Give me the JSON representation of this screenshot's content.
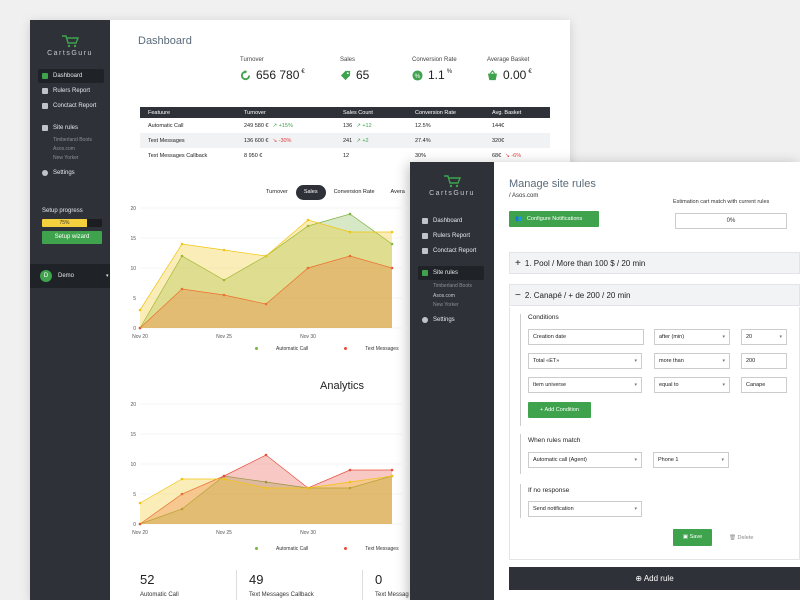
{
  "sidebar": {
    "logo": "CartsGuru",
    "items": [
      {
        "label": "Dashboard"
      },
      {
        "label": "Rulers Report"
      },
      {
        "label": "Conctact Report"
      },
      {
        "label": "Site rules"
      },
      {
        "label": "Settings"
      }
    ],
    "sites": [
      "Timberland Boots",
      "Asos.com",
      "New Yorker"
    ],
    "progress_label": "Setup progress",
    "progress_value": "75%",
    "wizard_label": "Setup wizard",
    "user_initial": "D",
    "user_name": "Demo"
  },
  "dashboard": {
    "title": "Dashboard",
    "stats": [
      {
        "label": "Turnover",
        "value": "656 780",
        "unit": "€",
        "icon": "refresh-icon"
      },
      {
        "label": "Sales",
        "value": "65",
        "unit": "",
        "icon": "tag-icon"
      },
      {
        "label": "Conversion Rate",
        "value": "1.1",
        "unit": "%",
        "icon": "badge-icon"
      },
      {
        "label": "Average Basket",
        "value": "0.00",
        "unit": "€",
        "icon": "basket-icon"
      }
    ],
    "table": {
      "headers": [
        "Featuure",
        "Turnover",
        "Sales Count",
        "Conversion Rate",
        "Avg. Basket"
      ],
      "rows": [
        {
          "feature": "Automatic Call",
          "turnover": "249 580 €",
          "t_delta": "+15%",
          "t_dir": "up",
          "sales": "136",
          "s_delta": "+12",
          "s_dir": "up",
          "conv": "12.5%",
          "avg": "144€",
          "a_delta": "",
          "a_dir": ""
        },
        {
          "feature": "Text Messages",
          "turnover": "136 600 €",
          "t_delta": "-30%",
          "t_dir": "down",
          "sales": "241",
          "s_delta": "+2",
          "s_dir": "up",
          "conv": "27.4%",
          "avg": "320€",
          "a_delta": "",
          "a_dir": ""
        },
        {
          "feature": "Text Messages Callback",
          "turnover": "8 950 €",
          "t_delta": "",
          "t_dir": "",
          "sales": "12",
          "s_delta": "",
          "s_dir": "",
          "conv": "30%",
          "avg": "68€",
          "a_delta": "-6%",
          "a_dir": "down"
        }
      ]
    },
    "chart_tabs": [
      "Turnover",
      "Sales",
      "Conversion Rate",
      "Avera"
    ],
    "active_tab": "Sales",
    "analytics_title": "Analytics",
    "bottom_stats": [
      {
        "value": "52",
        "label": "Automatic Call"
      },
      {
        "value": "49",
        "label": "Text Messages Callback"
      },
      {
        "value": "0",
        "label": "Text Messag"
      }
    ]
  },
  "chart_data": [
    {
      "type": "area",
      "x_ticks": [
        "Nov 20",
        "Nov 25",
        "Nov 30"
      ],
      "y_ticks": [
        0,
        5,
        10,
        15,
        20
      ],
      "ylim": [
        0,
        20
      ],
      "x": [
        0,
        1,
        2,
        3,
        4,
        5,
        6
      ],
      "series": [
        {
          "name": "Automatic Call",
          "color": "#7cb342",
          "values": [
            0,
            12,
            8,
            12,
            17,
            19,
            14
          ]
        },
        {
          "name": "Text Messages",
          "color": "#e74c3c",
          "values": [
            0,
            6.5,
            5.5,
            4,
            10,
            12,
            10
          ]
        },
        {
          "name": "Text Messa",
          "color": "#f1c40f",
          "values": [
            3,
            14,
            13,
            12,
            18,
            16,
            16
          ]
        }
      ]
    },
    {
      "type": "area",
      "x_ticks": [
        "Nov 20",
        "Nov 25",
        "Nov 30"
      ],
      "y_ticks": [
        0,
        5,
        10,
        15,
        20
      ],
      "ylim": [
        0,
        20
      ],
      "x": [
        0,
        1,
        2,
        3,
        4,
        5,
        6
      ],
      "series": [
        {
          "name": "Automatic Call",
          "color": "#7cb342",
          "values": [
            0,
            2.5,
            8,
            7,
            6,
            6,
            8
          ]
        },
        {
          "name": "Text Messages",
          "color": "#e74c3c",
          "values": [
            0,
            5,
            8,
            11.5,
            6,
            9,
            9
          ]
        },
        {
          "name": "Text Messa",
          "color": "#f1c40f",
          "values": [
            3.5,
            7.5,
            7.5,
            6,
            6,
            7,
            8
          ]
        }
      ]
    }
  ],
  "rules_page": {
    "title": "Manage site rules",
    "site": "/ Asos.com",
    "notify_button": "Configure Notifications",
    "estimation_label": "Estimation cart match with current rules",
    "estimation_value": "0%",
    "rule1": "1. Pool / More than 100 $ / 20 min",
    "rule2": "2. Canapé / + de 200 / 20 min",
    "conditions_title": "Conditions",
    "conditions": [
      {
        "field": "Creation date",
        "op": "after (min)",
        "value": "20"
      },
      {
        "field": "Total «ET»",
        "op": "more than",
        "value": "200"
      },
      {
        "field": "Item universe",
        "op": "equal to",
        "value": "Canape"
      }
    ],
    "add_condition": "Add Condition",
    "when_title": "When rules match",
    "when_action": "Automatic call (Agent)",
    "when_phone": "Phone 1",
    "noresp_title": "If no response",
    "noresp_action": "Send notification",
    "save": "Save",
    "delete": "Delete",
    "add_rule": "Add rule"
  }
}
